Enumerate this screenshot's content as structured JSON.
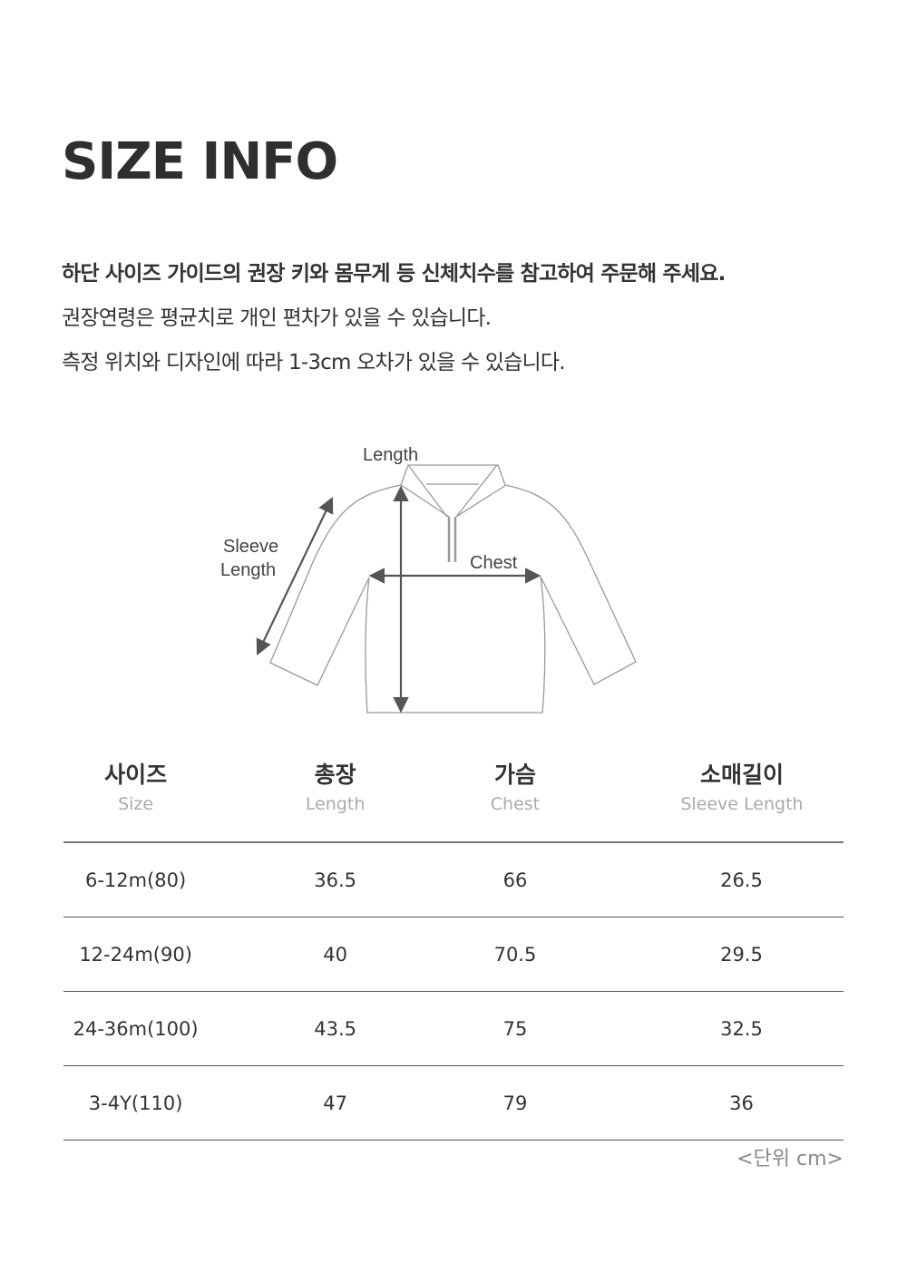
{
  "title": "SIZE INFO",
  "notes": [
    "하단 사이즈 가이드의 권장 키와 몸무게 등 신체치수를 참고하여 주문해 주세요.",
    "권장연령은 평균치로 개인 편차가 있을 수 있습니다.",
    "측정 위치와 디자인에 따라 1-3cm 오차가 있을 수 있습니다."
  ],
  "diagram": {
    "length": "Length",
    "sleeve_line1": "Sleeve",
    "sleeve_line2": "Length",
    "chest": "Chest"
  },
  "table": {
    "headers": [
      {
        "ko": "사이즈",
        "en": "Size"
      },
      {
        "ko": "총장",
        "en": "Length"
      },
      {
        "ko": "가슴",
        "en": "Chest"
      },
      {
        "ko": "소매길이",
        "en": "Sleeve Length"
      }
    ],
    "rows": [
      [
        "6-12m(80)",
        "36.5",
        "66",
        "26.5"
      ],
      [
        "12-24m(90)",
        "40",
        "70.5",
        "29.5"
      ],
      [
        "24-36m(100)",
        "43.5",
        "75",
        "32.5"
      ],
      [
        "3-4Y(110)",
        "47",
        "79",
        "36"
      ]
    ]
  },
  "unit": "<단위 cm>"
}
